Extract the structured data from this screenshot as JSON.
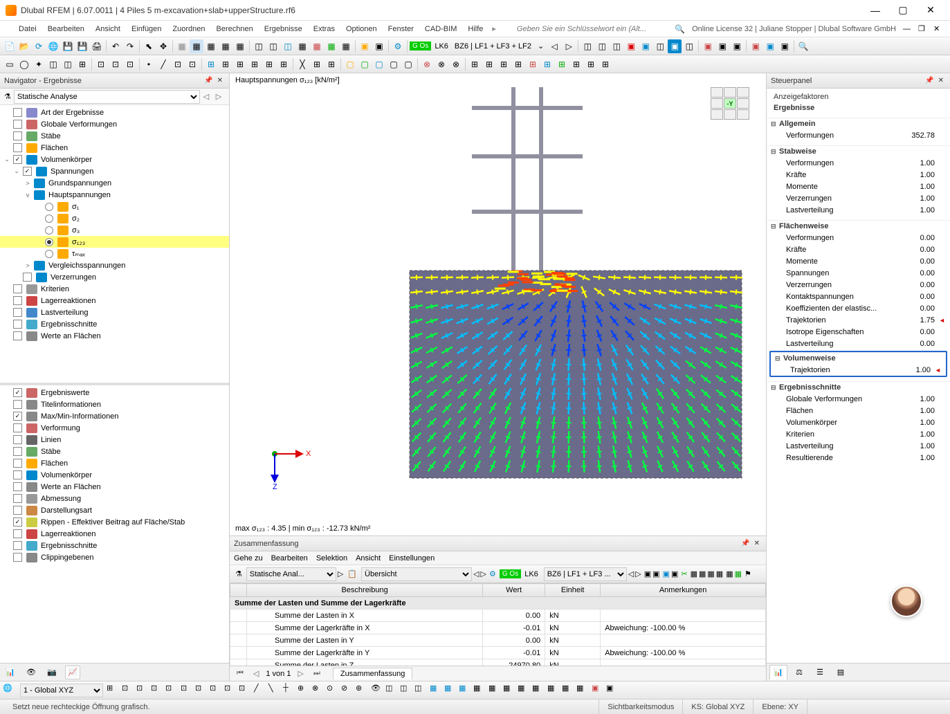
{
  "window": {
    "title": "Dlubal RFEM | 6.07.0011 | 4 Piles 5 m-excavation+slab+upperStructure.rf6",
    "license": "Online License 32 | Juliane Stopper | Dlubal Software GmbH"
  },
  "menu": [
    "Datei",
    "Bearbeiten",
    "Ansicht",
    "Einfügen",
    "Zuordnen",
    "Berechnen",
    "Ergebnisse",
    "Extras",
    "Optionen",
    "Fenster",
    "CAD-BIM",
    "Hilfe"
  ],
  "menu_search_placeholder": "Geben Sie ein Schlüsselwort ein (Alt...",
  "toolbar_lk": {
    "gos": "G Os",
    "lk": "LK6",
    "bz": "BZ6 | LF1 + LF3 + LF2"
  },
  "navigator": {
    "title": "Navigator - Ergebnisse",
    "dropdown": "Statische Analyse",
    "tree": [
      {
        "lvl": 0,
        "chk": false,
        "ico": "#88c",
        "label": "Art der Ergebnisse"
      },
      {
        "lvl": 0,
        "chk": false,
        "ico": "#c66",
        "label": "Globale Verformungen"
      },
      {
        "lvl": 0,
        "chk": false,
        "ico": "#6a6",
        "label": "Stäbe"
      },
      {
        "lvl": 0,
        "chk": false,
        "ico": "#fa0",
        "label": "Flächen"
      },
      {
        "lvl": 0,
        "chk": true,
        "ico": "#08c",
        "label": "Volumenkörper",
        "exp": true
      },
      {
        "lvl": 1,
        "chk": true,
        "ico": "#08c",
        "label": "Spannungen",
        "exp": true
      },
      {
        "lvl": 2,
        "ico": "#08c",
        "label": "Grundspannungen",
        "exp": false,
        "expander": ">"
      },
      {
        "lvl": 2,
        "ico": "#08c",
        "label": "Hauptspannungen",
        "exp": true,
        "expander": "v"
      },
      {
        "lvl": 3,
        "radio": false,
        "ico": "#fa0",
        "label": "σ₁"
      },
      {
        "lvl": 3,
        "radio": false,
        "ico": "#fa0",
        "label": "σ₂"
      },
      {
        "lvl": 3,
        "radio": false,
        "ico": "#fa0",
        "label": "σ₃"
      },
      {
        "lvl": 3,
        "radio": true,
        "ico": "#fa0",
        "label": "σ₁₂₃",
        "sel": true
      },
      {
        "lvl": 3,
        "radio": false,
        "ico": "#fa0",
        "label": "τₘₐₓ"
      },
      {
        "lvl": 2,
        "ico": "#08c",
        "label": "Vergleichsspannungen",
        "expander": ">"
      },
      {
        "lvl": 1,
        "chk": false,
        "ico": "#08c",
        "label": "Verzerrungen"
      },
      {
        "lvl": 0,
        "chk": false,
        "ico": "#999",
        "label": "Kriterien"
      },
      {
        "lvl": 0,
        "chk": false,
        "ico": "#c44",
        "label": "Lagerreaktionen"
      },
      {
        "lvl": 0,
        "chk": false,
        "ico": "#48c",
        "label": "Lastverteilung"
      },
      {
        "lvl": 0,
        "chk": false,
        "ico": "#4ac",
        "label": "Ergebnisschnitte"
      },
      {
        "lvl": 0,
        "chk": false,
        "ico": "#888",
        "label": "Werte an Flächen"
      }
    ],
    "tree2": [
      {
        "chk": true,
        "ico": "#c66",
        "label": "Ergebniswerte"
      },
      {
        "chk": false,
        "ico": "#888",
        "label": "Titelinformationen"
      },
      {
        "chk": true,
        "ico": "#888",
        "label": "Max/Min-Informationen"
      },
      {
        "chk": false,
        "ico": "#c66",
        "label": "Verformung"
      },
      {
        "chk": false,
        "ico": "#666",
        "label": "Linien"
      },
      {
        "chk": false,
        "ico": "#6a6",
        "label": "Stäbe"
      },
      {
        "chk": false,
        "ico": "#fa0",
        "label": "Flächen"
      },
      {
        "chk": false,
        "ico": "#08c",
        "label": "Volumenkörper"
      },
      {
        "chk": false,
        "ico": "#888",
        "label": "Werte an Flächen"
      },
      {
        "chk": false,
        "ico": "#999",
        "label": "Abmessung"
      },
      {
        "chk": false,
        "ico": "#c84",
        "label": "Darstellungsart"
      },
      {
        "chk": true,
        "ico": "#cc4",
        "label": "Rippen - Effektiver Beitrag auf Fläche/Stab"
      },
      {
        "chk": false,
        "ico": "#c44",
        "label": "Lagerreaktionen"
      },
      {
        "chk": false,
        "ico": "#4ac",
        "label": "Ergebnisschnitte"
      },
      {
        "chk": false,
        "ico": "#888",
        "label": "Clippingebenen"
      }
    ]
  },
  "viewport": {
    "title": "Hauptspannungen σ₁₂₃ [kN/m²]",
    "footer": "max σ₁₂₃ : 4.35 | min σ₁₂₃ : -12.73 kN/m²",
    "cube_label": "-Y",
    "axes": {
      "x": "X",
      "z": "Z"
    },
    "colors": {
      "structure": "#9090a0",
      "slab_bg": "#6a6a8a",
      "high": "#ffff00",
      "mid": "#00ff40",
      "low": "#00c0ff",
      "deep": "#0040ff"
    }
  },
  "summary": {
    "panel_title": "Zusammenfassung",
    "menu": [
      "Gehe zu",
      "Bearbeiten",
      "Selektion",
      "Ansicht",
      "Einstellungen"
    ],
    "dd1": "Statische Anal...",
    "dd2": "Übersicht",
    "dd3": "BZ6 | LF1 + LF3 ...",
    "gos": "G Os",
    "lk": "LK6",
    "cols": [
      "Beschreibung",
      "Wert",
      "Einheit",
      "Anmerkungen"
    ],
    "group": "Summe der Lasten und Summe der Lagerkräfte",
    "rows": [
      {
        "d": "Summe der Lasten in X",
        "w": "0.00",
        "e": "kN",
        "a": ""
      },
      {
        "d": "Summe der Lagerkräfte in X",
        "w": "-0.01",
        "e": "kN",
        "a": "Abweichung: -100.00 %"
      },
      {
        "d": "Summe der Lasten in Y",
        "w": "0.00",
        "e": "kN",
        "a": ""
      },
      {
        "d": "Summe der Lagerkräfte in Y",
        "w": "-0.01",
        "e": "kN",
        "a": "Abweichung: -100.00 %"
      },
      {
        "d": "Summe der Lasten in Z",
        "w": "24970.80",
        "e": "kN",
        "a": ""
      }
    ],
    "pager": "1 von 1",
    "tab": "Zusammenfassung"
  },
  "steuer": {
    "title": "Steuerpanel",
    "subtitle1": "Anzeigefaktoren",
    "subtitle2": "Ergebnisse",
    "groups": [
      {
        "name": "Allgemein",
        "rows": [
          {
            "l": "Verformungen",
            "v": "352.78"
          }
        ]
      },
      {
        "name": "Stabweise",
        "rows": [
          {
            "l": "Verformungen",
            "v": "1.00"
          },
          {
            "l": "Kräfte",
            "v": "1.00"
          },
          {
            "l": "Momente",
            "v": "1.00"
          },
          {
            "l": "Verzerrungen",
            "v": "1.00"
          },
          {
            "l": "Lastverteilung",
            "v": "1.00"
          }
        ]
      },
      {
        "name": "Flächenweise",
        "rows": [
          {
            "l": "Verformungen",
            "v": "0.00"
          },
          {
            "l": "Kräfte",
            "v": "0.00"
          },
          {
            "l": "Momente",
            "v": "0.00"
          },
          {
            "l": "Spannungen",
            "v": "0.00"
          },
          {
            "l": "Verzerrungen",
            "v": "0.00"
          },
          {
            "l": "Kontaktspannungen",
            "v": "0.00"
          },
          {
            "l": "Koeffizienten der elastisc...",
            "v": "0.00"
          },
          {
            "l": "Trajektorien",
            "v": "1.75",
            "mark": "◄"
          },
          {
            "l": "Isotrope Eigenschaften",
            "v": "0.00"
          },
          {
            "l": "Lastverteilung",
            "v": "0.00"
          }
        ]
      },
      {
        "name": "Volumenweise",
        "highlight": true,
        "rows": [
          {
            "l": "Trajektorien",
            "v": "1.00",
            "mark": "◄"
          }
        ]
      },
      {
        "name": "Ergebnisschnitte",
        "rows": [
          {
            "l": "Globale Verformungen",
            "v": "1.00"
          },
          {
            "l": "Flächen",
            "v": "1.00"
          },
          {
            "l": "Volumenkörper",
            "v": "1.00"
          },
          {
            "l": "Kriterien",
            "v": "1.00"
          },
          {
            "l": "Lastverteilung",
            "v": "1.00"
          },
          {
            "l": "Resultierende",
            "v": "1.00"
          }
        ]
      }
    ]
  },
  "statusbar": {
    "msg": "Setzt neue rechteckige Öffnung grafisch.",
    "mode": "Sichtbarkeitsmodus",
    "ks": "KS: Global XYZ",
    "ebene": "Ebene: XY"
  },
  "global_dd": "1 - Global XYZ"
}
